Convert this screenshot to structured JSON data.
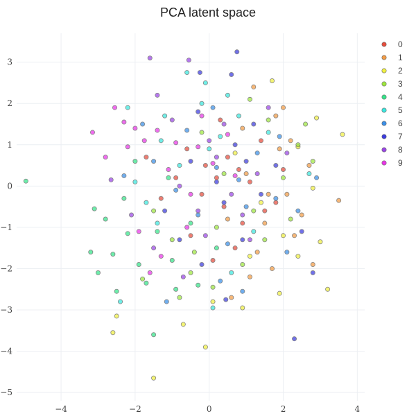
{
  "chart_data": {
    "type": "scatter",
    "title": "PCA latent space",
    "xlabel": "",
    "ylabel": "",
    "xlim": [
      -5.2,
      4.2
    ],
    "ylim": [
      -5.2,
      3.7
    ],
    "x_ticks": [
      -4,
      -2,
      0,
      2,
      4
    ],
    "y_ticks": [
      3,
      2,
      1,
      0,
      -1,
      -2,
      -3,
      -4,
      -5
    ],
    "x_tick_labels": [
      "−4",
      "−2",
      "0",
      "2",
      "4"
    ],
    "y_tick_labels": [
      "3",
      "2",
      "1",
      "0",
      "−1",
      "−2",
      "−3",
      "−4",
      "−5"
    ],
    "grid": true,
    "legend_position": "top-right",
    "legend": [
      "0",
      "1",
      "2",
      "3",
      "4",
      "5",
      "6",
      "7",
      "8",
      "9"
    ],
    "series": [
      {
        "name": "0",
        "color": "#e74c3c",
        "points": [
          [
            -0.6,
            0.9
          ],
          [
            -0.1,
            0.5
          ],
          [
            0.2,
            0.2
          ],
          [
            0.5,
            0.7
          ],
          [
            0.8,
            0.4
          ],
          [
            1.1,
            0.1
          ],
          [
            -0.9,
            0.2
          ],
          [
            -1.3,
            -0.3
          ],
          [
            0.4,
            -0.5
          ],
          [
            0.9,
            -0.9
          ],
          [
            1.5,
            -0.6
          ],
          [
            -0.5,
            -1.2
          ],
          [
            0.1,
            -1.8
          ],
          [
            0.7,
            -1.5
          ],
          [
            1.8,
            -0.4
          ],
          [
            -1.7,
            0.7
          ],
          [
            2.0,
            0.4
          ],
          [
            1.4,
            1.1
          ],
          [
            0.3,
            1.6
          ],
          [
            -0.2,
            -0.2
          ]
        ]
      },
      {
        "name": "1",
        "color": "#f39c45",
        "points": [
          [
            1.2,
            2.4
          ],
          [
            1.8,
            1.7
          ],
          [
            2.2,
            1.1
          ],
          [
            2.7,
            0.5
          ],
          [
            3.5,
            -0.35
          ],
          [
            2.3,
            -1.2
          ],
          [
            1.7,
            -2.0
          ],
          [
            1.1,
            -2.2
          ],
          [
            0.6,
            -2.7
          ],
          [
            1.5,
            -0.9
          ],
          [
            2.1,
            -0.2
          ],
          [
            1.9,
            0.9
          ],
          [
            0.9,
            1.4
          ],
          [
            2.5,
            -0.7
          ],
          [
            1.3,
            -1.6
          ],
          [
            2.8,
            -1.9
          ],
          [
            0.5,
            -0.8
          ],
          [
            1.0,
            0.3
          ],
          [
            2.0,
            1.9
          ],
          [
            1.6,
            -0.2
          ]
        ]
      },
      {
        "name": "2",
        "color": "#f1f141",
        "points": [
          [
            3.6,
            1.25
          ],
          [
            2.9,
            1.65
          ],
          [
            2.4,
            0.95
          ],
          [
            3.0,
            -1.35
          ],
          [
            3.2,
            -2.5
          ],
          [
            1.9,
            -2.6
          ],
          [
            -0.1,
            -3.9
          ],
          [
            -1.5,
            -4.65
          ],
          [
            -2.6,
            -3.55
          ],
          [
            -2.5,
            -3.15
          ],
          [
            -0.7,
            -3.35
          ],
          [
            0.9,
            -2.95
          ],
          [
            2.4,
            -1.7
          ],
          [
            1.4,
            -0.4
          ],
          [
            0.7,
            0.8
          ],
          [
            1.7,
            2.55
          ],
          [
            2.8,
            -0.05
          ],
          [
            2.0,
            -1.2
          ],
          [
            0.1,
            -2.8
          ],
          [
            1.1,
            -1.7
          ]
        ]
      },
      {
        "name": "3",
        "color": "#9ee83c",
        "points": [
          [
            1.1,
            2.1
          ],
          [
            2.4,
            1.0
          ],
          [
            2.0,
            0.2
          ],
          [
            1.5,
            -1.3
          ],
          [
            2.2,
            -0.8
          ],
          [
            0.2,
            -1.0
          ],
          [
            -0.4,
            -1.6
          ],
          [
            0.9,
            -1.9
          ],
          [
            -1.0,
            -1.3
          ],
          [
            -0.5,
            -2.1
          ],
          [
            -1.8,
            -2.25
          ],
          [
            -0.8,
            -2.7
          ],
          [
            0.1,
            -2.45
          ],
          [
            1.6,
            1.6
          ],
          [
            2.6,
            1.5
          ],
          [
            -0.2,
            1.3
          ],
          [
            0.4,
            0.3
          ],
          [
            1.2,
            -0.6
          ],
          [
            2.8,
            0.6
          ],
          [
            -1.5,
            -0.6
          ]
        ]
      },
      {
        "name": "4",
        "color": "#35e58a",
        "points": [
          [
            -4.95,
            0.12
          ],
          [
            -3.1,
            -0.55
          ],
          [
            -3.0,
            -2.1
          ],
          [
            -2.6,
            -1.65
          ],
          [
            -2.5,
            -2.55
          ],
          [
            -1.5,
            -3.6
          ],
          [
            -1.7,
            -2.35
          ],
          [
            -2.2,
            -1.15
          ],
          [
            -2.8,
            -0.8
          ],
          [
            -1.0,
            -1.8
          ],
          [
            -0.3,
            -2.4
          ],
          [
            -1.4,
            -1.1
          ],
          [
            -2.3,
            -0.3
          ],
          [
            -3.2,
            -1.6
          ],
          [
            -0.9,
            -2.5
          ],
          [
            -1.9,
            -1.9
          ],
          [
            -0.5,
            -0.9
          ],
          [
            -2.0,
            0.6
          ],
          [
            -1.1,
            0.2
          ],
          [
            0.2,
            -1.5
          ]
        ]
      },
      {
        "name": "5",
        "color": "#3ae8df",
        "points": [
          [
            -2.2,
            1.9
          ],
          [
            -0.6,
            2.75
          ],
          [
            -0.1,
            2.5
          ],
          [
            0.5,
            2.2
          ],
          [
            -1.2,
            1.7
          ],
          [
            -2.4,
            -2.8
          ],
          [
            0.1,
            -2.95
          ],
          [
            -1.3,
            1.1
          ],
          [
            -0.8,
            0.5
          ],
          [
            0.3,
            1.2
          ],
          [
            -1.7,
            -0.4
          ],
          [
            2.7,
            0.3
          ],
          [
            1.6,
            1.3
          ],
          [
            -0.2,
            2.0
          ],
          [
            0.8,
            1.7
          ],
          [
            -2.0,
            0.1
          ],
          [
            0.6,
            -2.1
          ],
          [
            -1.4,
            -0.9
          ],
          [
            1.2,
            -1.1
          ],
          [
            0.0,
            0.9
          ]
        ]
      },
      {
        "name": "6",
        "color": "#3a8fe8",
        "points": [
          [
            -1.15,
            -2.8
          ],
          [
            0.3,
            -2.3
          ],
          [
            0.9,
            -2.55
          ],
          [
            2.1,
            -1.6
          ],
          [
            2.9,
            0.2
          ],
          [
            -2.3,
            0.25
          ],
          [
            -1.5,
            0.6
          ],
          [
            -0.6,
            1.35
          ],
          [
            0.2,
            0.45
          ],
          [
            0.8,
            0.15
          ],
          [
            1.8,
            -0.3
          ],
          [
            1.3,
            0.8
          ],
          [
            -0.3,
            -0.7
          ],
          [
            0.5,
            -1.4
          ],
          [
            1.9,
            1.2
          ],
          [
            -0.9,
            -0.1
          ],
          [
            0.1,
            1.9
          ],
          [
            2.4,
            -0.6
          ],
          [
            -1.8,
            1.5
          ],
          [
            1.0,
            -0.5
          ]
        ]
      },
      {
        "name": "7",
        "color": "#3b3be0",
        "points": [
          [
            0.75,
            3.25
          ],
          [
            -0.25,
            2.75
          ],
          [
            0.6,
            2.7
          ],
          [
            2.3,
            -3.7
          ],
          [
            2.8,
            -2.1
          ],
          [
            0.45,
            -2.75
          ],
          [
            -0.2,
            -1.9
          ],
          [
            0.9,
            -1.3
          ],
          [
            1.4,
            -0.2
          ],
          [
            0.2,
            0.1
          ],
          [
            -0.5,
            0.6
          ],
          [
            0.7,
            1.0
          ],
          [
            1.2,
            1.5
          ],
          [
            1.8,
            0.5
          ],
          [
            -1.2,
            -0.6
          ],
          [
            -0.8,
            -1.3
          ],
          [
            0.4,
            -0.4
          ],
          [
            1.0,
            0.6
          ],
          [
            -0.3,
            1.8
          ],
          [
            2.5,
            -1.1
          ]
        ]
      },
      {
        "name": "8",
        "color": "#9b45e8",
        "points": [
          [
            -1.6,
            3.1
          ],
          [
            -0.55,
            3.05
          ],
          [
            -1.4,
            2.2
          ],
          [
            -2.65,
            0.15
          ],
          [
            0.2,
            0.7
          ],
          [
            -0.8,
            0.0
          ],
          [
            0.6,
            -0.2
          ],
          [
            1.3,
            0.3
          ],
          [
            -0.3,
            -0.6
          ],
          [
            0.9,
            -0.7
          ],
          [
            -1.5,
            -1.5
          ],
          [
            -0.7,
            -2.2
          ],
          [
            0.4,
            1.5
          ],
          [
            1.6,
            1.9
          ],
          [
            -2.1,
            -0.7
          ],
          [
            0.0,
            1.1
          ],
          [
            1.1,
            -1.3
          ],
          [
            -1.0,
            1.6
          ],
          [
            2.1,
            0.8
          ],
          [
            -0.1,
            -1.2
          ]
        ]
      },
      {
        "name": "9",
        "color": "#ea34e8",
        "points": [
          [
            -3.15,
            1.3
          ],
          [
            -2.55,
            1.9
          ],
          [
            -2.3,
            1.55
          ],
          [
            -2.0,
            1.4
          ],
          [
            -1.75,
            1.1
          ],
          [
            -1.4,
            1.35
          ],
          [
            -0.9,
            1.05
          ],
          [
            -0.3,
            0.95
          ],
          [
            0.1,
            0.55
          ],
          [
            0.7,
            0.25
          ],
          [
            -1.9,
            -1.1
          ],
          [
            -1.3,
            -1.7
          ],
          [
            -0.6,
            -1.0
          ],
          [
            -2.8,
            0.7
          ],
          [
            -0.2,
            1.7
          ],
          [
            0.5,
            1.25
          ],
          [
            -1.1,
            0.4
          ],
          [
            -0.5,
            -0.2
          ],
          [
            -1.6,
            -2.1
          ],
          [
            -2.2,
            0.95
          ]
        ]
      }
    ]
  }
}
